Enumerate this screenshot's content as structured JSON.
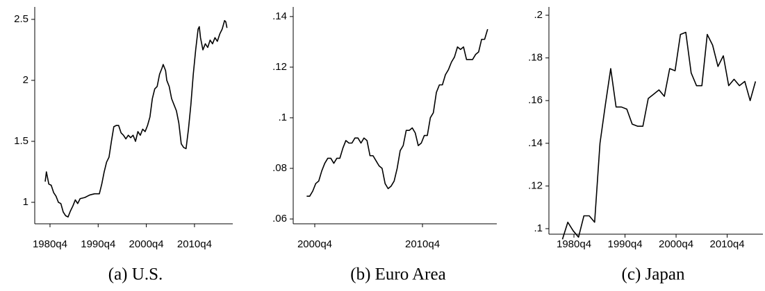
{
  "chart_data": [
    {
      "type": "line",
      "title": "(a) U.S.",
      "color": "#000000",
      "x": [
        1979.75,
        1980,
        1980.5,
        1981,
        1981.5,
        1982,
        1982.5,
        1983,
        1983.5,
        1984,
        1984.5,
        1985,
        1985.5,
        1986,
        1986.5,
        1987,
        1988,
        1989,
        1990,
        1991,
        1991.5,
        1992,
        1992.5,
        1993,
        1993.5,
        1994,
        1994.5,
        1995,
        1995.5,
        1996,
        1996.5,
        1997,
        1997.5,
        1998,
        1998.5,
        1999,
        1999.5,
        2000,
        2000.5,
        2001,
        2001.5,
        2002,
        2002.5,
        2003,
        2003.5,
        2004,
        2004.25,
        2004.75,
        2005,
        2005.5,
        2006,
        2006.5,
        2007,
        2007.5,
        2008,
        2008.5,
        2009,
        2009.5,
        2010,
        2010.5,
        2011,
        2011.5,
        2011.75,
        2012,
        2012.5,
        2013,
        2013.5,
        2014,
        2014.5,
        2015,
        2015.5,
        2016,
        2016.5,
        2017,
        2017.25,
        2017.5
      ],
      "values": [
        1.17,
        1.25,
        1.15,
        1.14,
        1.08,
        1.05,
        1.0,
        0.99,
        0.92,
        0.89,
        0.88,
        0.93,
        0.97,
        1.02,
        0.99,
        1.03,
        1.04,
        1.06,
        1.07,
        1.07,
        1.15,
        1.25,
        1.33,
        1.37,
        1.5,
        1.62,
        1.63,
        1.63,
        1.57,
        1.55,
        1.52,
        1.55,
        1.53,
        1.55,
        1.5,
        1.58,
        1.55,
        1.6,
        1.58,
        1.63,
        1.7,
        1.85,
        1.93,
        1.95,
        2.05,
        2.1,
        2.13,
        2.08,
        2.0,
        1.95,
        1.85,
        1.8,
        1.75,
        1.65,
        1.48,
        1.45,
        1.44,
        1.6,
        1.8,
        2.05,
        2.25,
        2.42,
        2.44,
        2.35,
        2.25,
        2.3,
        2.27,
        2.33,
        2.3,
        2.35,
        2.32,
        2.38,
        2.42,
        2.49,
        2.48,
        2.43
      ],
      "xlim": [
        1977.58,
        2018.7
      ],
      "ylim": [
        0.824,
        2.602
      ],
      "xticks": [
        {
          "value": 1980.75,
          "label": "1980q4"
        },
        {
          "value": 1990.75,
          "label": "1990q4"
        },
        {
          "value": 2000.75,
          "label": "2000q4"
        },
        {
          "value": 2010.75,
          "label": "2010q4"
        }
      ],
      "yticks": [
        1,
        1.5,
        2,
        2.5
      ]
    },
    {
      "type": "line",
      "title": "(b) Euro Area",
      "color": "#000000",
      "x": [
        2000.0,
        2000.28,
        2000.56,
        2000.84,
        2001.12,
        2001.4,
        2001.68,
        2001.96,
        2002.24,
        2002.52,
        2002.8,
        2003.08,
        2003.36,
        2003.64,
        2003.92,
        2004.2,
        2004.48,
        2004.76,
        2005.04,
        2005.32,
        2005.6,
        2005.88,
        2006.16,
        2006.44,
        2006.72,
        2007.0,
        2007.28,
        2007.56,
        2007.84,
        2008.12,
        2008.4,
        2008.68,
        2008.96,
        2009.24,
        2009.52,
        2009.8,
        2010.08,
        2010.36,
        2010.64,
        2010.92,
        2011.2,
        2011.48,
        2011.76,
        2012.04,
        2012.32,
        2012.6,
        2012.88,
        2013.16,
        2013.44,
        2013.72,
        2014.0,
        2014.28,
        2014.56,
        2014.84,
        2015.12,
        2015.4,
        2015.68,
        2015.96,
        2016.24,
        2016.52,
        2016.8
      ],
      "values": [
        0.069,
        0.069,
        0.071,
        0.074,
        0.075,
        0.079,
        0.082,
        0.084,
        0.084,
        0.082,
        0.084,
        0.084,
        0.088,
        0.091,
        0.09,
        0.09,
        0.092,
        0.092,
        0.09,
        0.092,
        0.091,
        0.085,
        0.085,
        0.083,
        0.081,
        0.08,
        0.074,
        0.072,
        0.073,
        0.075,
        0.08,
        0.087,
        0.089,
        0.095,
        0.095,
        0.096,
        0.094,
        0.089,
        0.09,
        0.093,
        0.093,
        0.1,
        0.102,
        0.11,
        0.113,
        0.113,
        0.117,
        0.119,
        0.122,
        0.124,
        0.128,
        0.127,
        0.128,
        0.123,
        0.123,
        0.123,
        0.125,
        0.126,
        0.131,
        0.131,
        0.135
      ],
      "xlim": [
        1998.75,
        2017.65
      ],
      "ylim": [
        0.0581,
        0.1438
      ],
      "xticks": [
        {
          "value": 2000.75,
          "label": "2000q4"
        },
        {
          "value": 2010.75,
          "label": "2010q4"
        }
      ],
      "yticks": [
        {
          "value": 0.06,
          "label": ".06"
        },
        {
          "value": 0.08,
          "label": ".08"
        },
        {
          "value": 0.1,
          "label": ".1"
        },
        {
          "value": 0.12,
          "label": ".12"
        },
        {
          "value": 0.14,
          "label": ".14"
        }
      ]
    },
    {
      "type": "line",
      "title": "(c) Japan",
      "color": "#000000",
      "x": [
        1978.5,
        1979.55,
        1980.6,
        1981.65,
        1982.7,
        1983.75,
        1984.8,
        1985.85,
        1986.9,
        1987.95,
        1989.0,
        1990.05,
        1991.1,
        1992.15,
        1993.2,
        1994.25,
        1995.3,
        1996.35,
        1997.4,
        1998.45,
        1999.5,
        2000.55,
        2001.6,
        2002.65,
        2003.7,
        2004.75,
        2005.8,
        2006.85,
        2007.9,
        2008.95,
        2010.0,
        2011.05,
        2012.1,
        2013.15,
        2014.2,
        2015.25,
        2016.3
      ],
      "values": [
        0.095,
        0.103,
        0.099,
        0.096,
        0.106,
        0.106,
        0.103,
        0.14,
        0.158,
        0.175,
        0.157,
        0.157,
        0.156,
        0.149,
        0.148,
        0.148,
        0.161,
        0.163,
        0.165,
        0.162,
        0.175,
        0.174,
        0.191,
        0.192,
        0.173,
        0.167,
        0.167,
        0.191,
        0.186,
        0.176,
        0.181,
        0.167,
        0.17,
        0.167,
        0.169,
        0.16,
        0.169
      ],
      "xlim": [
        1975.85,
        2017.75
      ],
      "ylim": [
        0.0974,
        0.2039
      ],
      "xticks": [
        {
          "value": 1980.75,
          "label": "1980q4"
        },
        {
          "value": 1990.75,
          "label": "1990q4"
        },
        {
          "value": 2000.75,
          "label": "2000q4"
        },
        {
          "value": 2010.75,
          "label": "2010q4"
        }
      ],
      "yticks": [
        {
          "value": 0.1,
          "label": ".1"
        },
        {
          "value": 0.12,
          "label": ".12"
        },
        {
          "value": 0.14,
          "label": ".14"
        },
        {
          "value": 0.16,
          "label": ".16"
        },
        {
          "value": 0.18,
          "label": ".18"
        },
        {
          "value": 0.2,
          "label": ".2"
        }
      ]
    }
  ]
}
